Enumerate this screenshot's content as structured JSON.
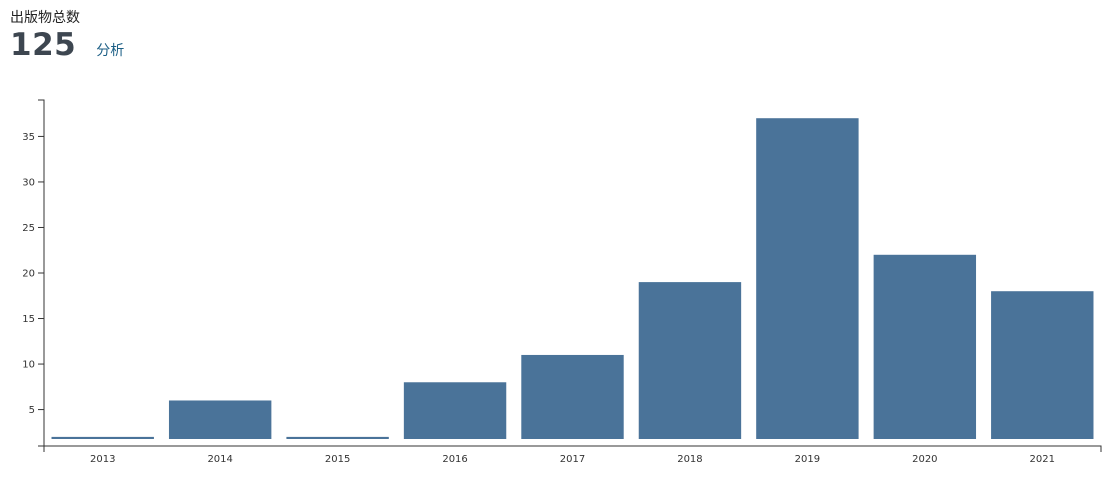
{
  "header": {
    "label": "出版物总数",
    "total": "125",
    "analysis_link": "分析"
  },
  "colors": {
    "bar": "#4a7399",
    "axis": "#333333"
  },
  "chart_data": {
    "type": "bar",
    "categories": [
      "2013",
      "2014",
      "2015",
      "2016",
      "2017",
      "2018",
      "2019",
      "2020",
      "2021"
    ],
    "values": [
      2,
      6,
      2,
      8,
      11,
      19,
      37,
      22,
      18
    ],
    "yticks": [
      5,
      10,
      15,
      20,
      25,
      30,
      35
    ],
    "ylim": [
      1,
      39
    ],
    "title": "",
    "xlabel": "",
    "ylabel": "",
    "grid": false
  }
}
